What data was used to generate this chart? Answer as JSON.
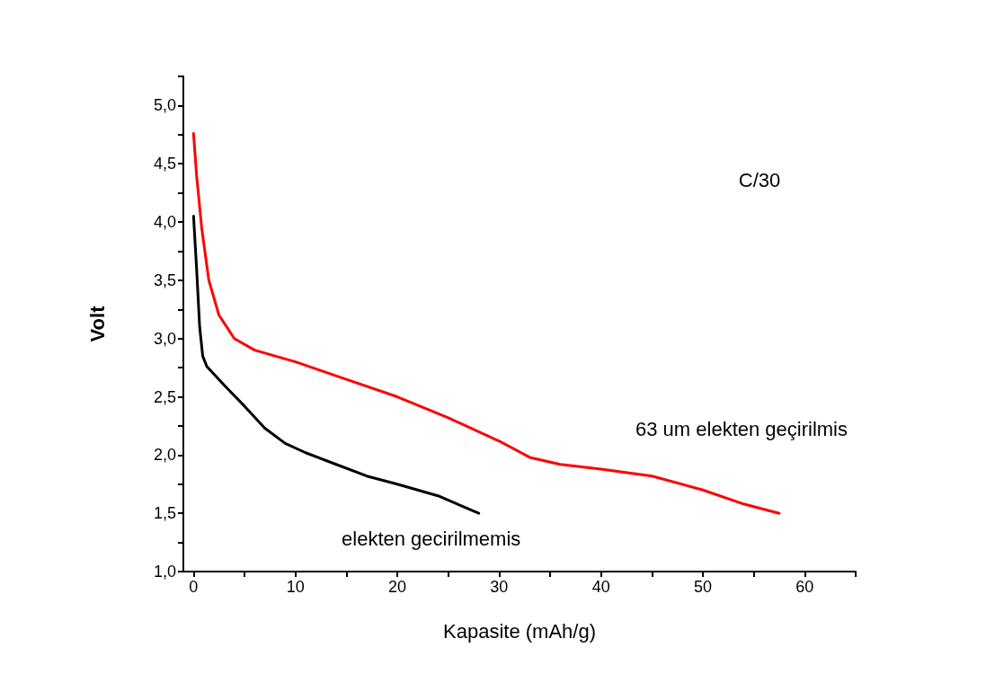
{
  "chart_data": {
    "type": "line",
    "xlabel": "Kapasite (mAh/g)",
    "ylabel": "Volt",
    "annotations": [
      "C/30"
    ],
    "xlim": [
      -1,
      65
    ],
    "ylim": [
      1,
      5.25
    ],
    "xticks": [
      0,
      {
        "value": 5,
        "label": null
      },
      10,
      {
        "value": 15,
        "label": null
      },
      20,
      {
        "value": 25,
        "label": null
      },
      30,
      {
        "value": 35,
        "label": null
      },
      40,
      {
        "value": 45,
        "label": null
      },
      50,
      {
        "value": 55,
        "label": null
      },
      60,
      {
        "value": 65,
        "label": null
      }
    ],
    "yticks": [
      {
        "value": 1,
        "label": "1,0"
      },
      {
        "value": 1.25,
        "label": null
      },
      {
        "value": 1.5,
        "label": "1,5"
      },
      {
        "value": 1.75,
        "label": null
      },
      {
        "value": 2,
        "label": "2,0"
      },
      {
        "value": 2.25,
        "label": null
      },
      {
        "value": 2.5,
        "label": "2,5"
      },
      {
        "value": 2.75,
        "label": null
      },
      {
        "value": 3,
        "label": "3,0"
      },
      {
        "value": 3.25,
        "label": null
      },
      {
        "value": 3.5,
        "label": "3,5"
      },
      {
        "value": 3.75,
        "label": null
      },
      {
        "value": 4,
        "label": "4,0"
      },
      {
        "value": 4.25,
        "label": null
      },
      {
        "value": 4.5,
        "label": "4,5"
      },
      {
        "value": 4.75,
        "label": null
      },
      {
        "value": 5,
        "label": "5,0"
      },
      {
        "value": 5.25,
        "label": null
      }
    ],
    "grid": false,
    "legend": false,
    "marker": "none",
    "line_style": "solid",
    "series": [
      {
        "name": "elekten gecirilmemis",
        "color": "#000000",
        "x": [
          0,
          0.3,
          0.6,
          0.9,
          1.3,
          3,
          5,
          7,
          9,
          11,
          14,
          17,
          20,
          24,
          28
        ],
        "values": [
          4.05,
          3.6,
          3.1,
          2.85,
          2.76,
          2.6,
          2.42,
          2.23,
          2.1,
          2.02,
          1.92,
          1.82,
          1.75,
          1.65,
          1.5
        ]
      },
      {
        "name": "63 um elekten geçirilmis",
        "color": "#ff0000",
        "x": [
          0,
          0.3,
          0.8,
          1.5,
          2.5,
          4,
          6,
          10,
          15,
          20,
          25,
          30,
          33,
          36,
          40,
          45,
          50,
          54,
          57.5
        ],
        "values": [
          4.76,
          4.4,
          3.95,
          3.5,
          3.2,
          3.0,
          2.9,
          2.8,
          2.65,
          2.5,
          2.32,
          2.12,
          1.98,
          1.92,
          1.88,
          1.82,
          1.7,
          1.58,
          1.5
        ]
      }
    ]
  }
}
